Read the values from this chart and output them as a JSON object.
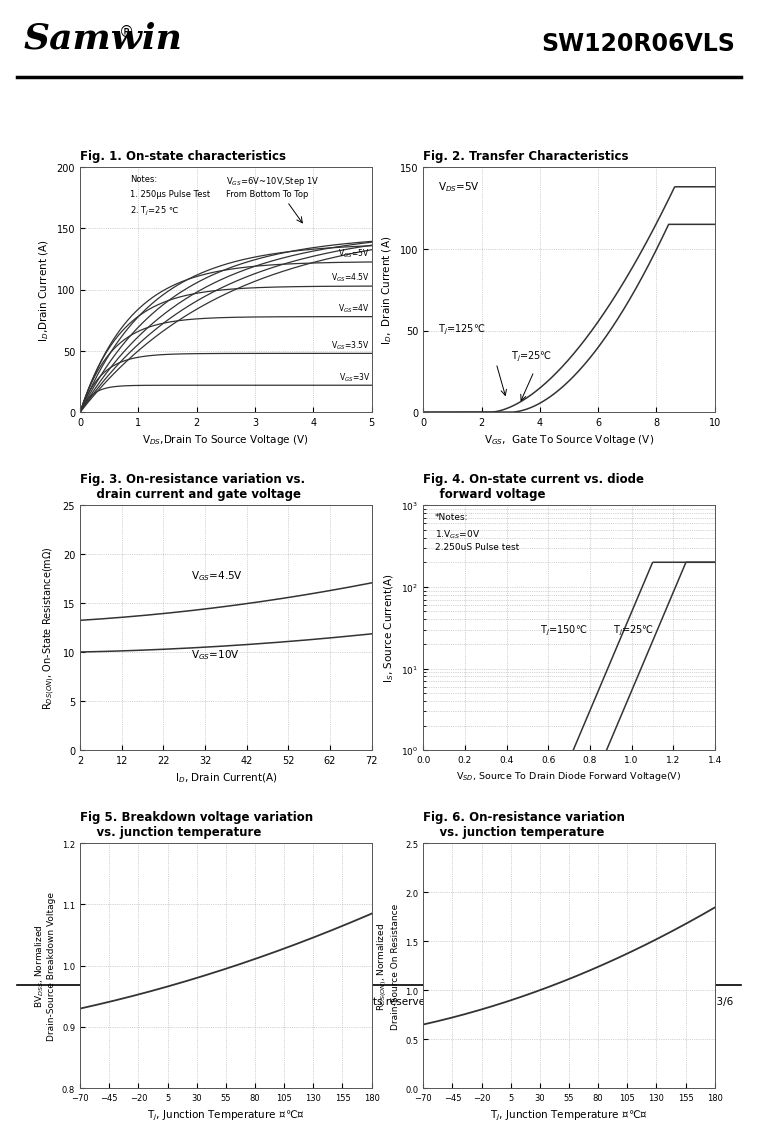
{
  "title_left": "Samwin",
  "title_right": "SW120R06VLS",
  "fig1_title": "Fig. 1. On-state characteristics",
  "fig2_title": "Fig. 2. Transfer Characteristics",
  "fig3_title": "Fig. 3. On-resistance variation vs.\n    drain current and gate voltage",
  "fig4_title": "Fig. 4. On-state current vs. diode\n    forward voltage",
  "fig5_title": "Fig 5. Breakdown voltage variation\n    vs. junction temperature",
  "fig6_title": "Fig. 6. On-resistance variation\n    vs. junction temperature",
  "footer": "Copyright@ Semipower Technology Co., Ltd. All rights reserved.",
  "footer_right": "Aug. 2023. Rev. 0.5    3/6",
  "bg": "#ffffff",
  "lc": "#333333",
  "gc": "#aaaaaa"
}
